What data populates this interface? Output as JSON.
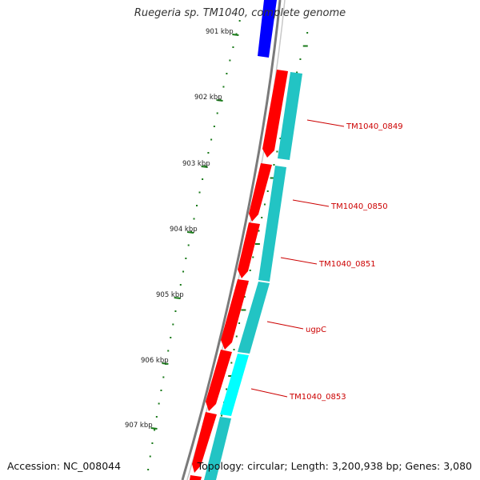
{
  "title": "Ruegeria sp. TM1040, complete genome",
  "footer": {
    "accession": "Accession: NC_008044",
    "stats": "Topology: circular; Length: 3,200,938 bp; Genes: 3,080"
  },
  "colors": {
    "backbone": "#7a7a7a",
    "forward_gene": "#ff0000",
    "reverse_gene": "#22c4c4",
    "highlight_gene": "#00ffff",
    "other_gene": "#0000ff",
    "ticks": "#1a7a1a",
    "labels": "#cc0000"
  },
  "scale_labels": [
    "901 kbp",
    "902 kbp",
    "903 kbp",
    "904 kbp",
    "905 kbp",
    "906 kbp",
    "907 kbp"
  ],
  "gene_labels": [
    "TM1040_0849",
    "TM1040_0850",
    "TM1040_0851",
    "ugpC",
    "TM1040_0853"
  ]
}
